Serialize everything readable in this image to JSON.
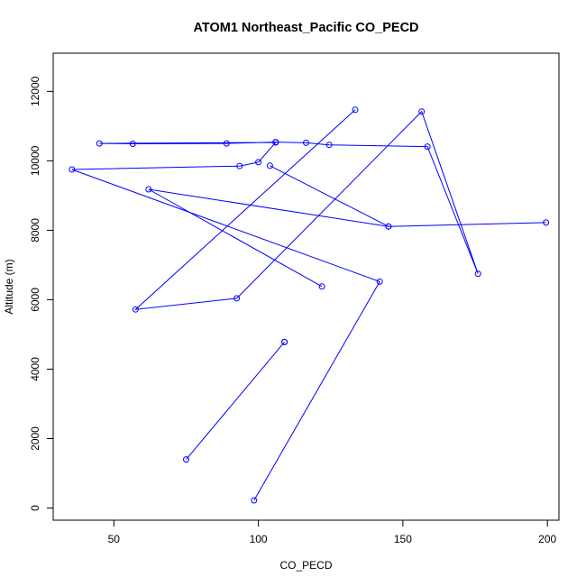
{
  "chart_data": {
    "type": "line",
    "title": "ATOM1 Northeast_Pacific CO_PECD",
    "xlabel": "CO_PECD",
    "ylabel": "Altitude (m)",
    "xlim": [
      29,
      204
    ],
    "ylim": [
      -350,
      13100
    ],
    "x_ticks": [
      50,
      100,
      150,
      200
    ],
    "y_ticks": [
      0,
      2000,
      4000,
      6000,
      8000,
      10000,
      12000
    ],
    "x_tick_labels": [
      "50",
      "100",
      "150",
      "200"
    ],
    "y_tick_labels": [
      "0",
      "2000",
      "4000",
      "6000",
      "8000",
      "10000",
      "12000"
    ],
    "grid": false,
    "legend": "none",
    "marker": "open-circle",
    "color": "#0000ff",
    "series": [
      {
        "x": [
          98.5,
          142,
          35.5,
          93.5,
          100,
          106,
          45,
          56.5,
          89,
          106,
          116.5,
          124.5,
          158.5,
          176,
          156.5,
          92.5,
          57.5,
          133.5
        ],
        "y": [
          220,
          6520,
          9750,
          9850,
          9960,
          10530,
          10500,
          10490,
          10500,
          10540,
          10520,
          10460,
          10410,
          6750,
          11420,
          6040,
          5720,
          11470
        ]
      },
      {
        "x": [
          109,
          75,
          109
        ],
        "y": [
          4780,
          1400,
          4780
        ]
      },
      {
        "x": [
          122,
          62,
          145,
          199.5
        ],
        "y": [
          6380,
          9180,
          8110,
          8220
        ]
      },
      {
        "x": [
          104,
          145
        ],
        "y": [
          9860,
          8110
        ]
      }
    ]
  }
}
